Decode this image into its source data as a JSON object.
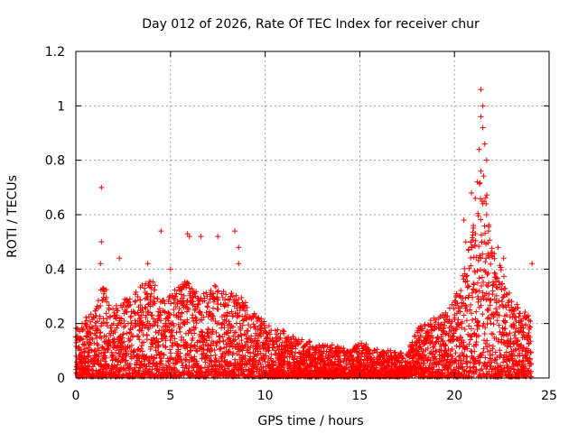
{
  "chart_data": {
    "type": "scatter",
    "title": "Day 012 of 2026, Rate Of TEC Index for receiver chur",
    "xlabel": "GPS time / hours",
    "ylabel": "ROTI / TECUs",
    "xlim": [
      0,
      25
    ],
    "ylim": [
      0,
      1.2
    ],
    "xticks": [
      0,
      5,
      10,
      15,
      20,
      25
    ],
    "xtick_labels": [
      "0",
      "5",
      "10",
      "15",
      "20",
      "25"
    ],
    "yticks": [
      0,
      0.2,
      0.4,
      0.6,
      0.8,
      1.0,
      1.2
    ],
    "ytick_labels": [
      "0",
      "0.2",
      "0.4",
      "0.6",
      "0.8",
      "1",
      "1.2"
    ],
    "grid": true,
    "marker": "+",
    "color": "#ff0000",
    "series": [
      {
        "name": "ROTI",
        "envelope": {
          "x": [
            0.0,
            0.5,
            1.0,
            1.5,
            2.0,
            2.5,
            3.0,
            3.5,
            4.0,
            4.5,
            5.0,
            5.5,
            6.0,
            6.5,
            7.0,
            7.5,
            8.0,
            8.5,
            9.0,
            9.5,
            10.0,
            10.5,
            11.0,
            11.5,
            12.0,
            12.5,
            13.0,
            13.5,
            14.0,
            14.5,
            15.0,
            15.5,
            16.0,
            16.5,
            17.0,
            17.5,
            18.0,
            18.5,
            19.0,
            19.5,
            20.0,
            20.5,
            21.0,
            21.5,
            22.0,
            22.5,
            23.0,
            23.5,
            24.0
          ],
          "y_max": [
            0.18,
            0.22,
            0.25,
            0.36,
            0.25,
            0.3,
            0.3,
            0.34,
            0.38,
            0.28,
            0.3,
            0.34,
            0.36,
            0.3,
            0.33,
            0.34,
            0.3,
            0.32,
            0.28,
            0.24,
            0.2,
            0.18,
            0.17,
            0.15,
            0.14,
            0.13,
            0.12,
            0.12,
            0.11,
            0.1,
            0.13,
            0.12,
            0.1,
            0.1,
            0.09,
            0.09,
            0.18,
            0.2,
            0.22,
            0.24,
            0.28,
            0.4,
            0.55,
            0.8,
            0.5,
            0.4,
            0.3,
            0.26,
            0.22
          ]
        },
        "outliers": [
          {
            "x": 1.35,
            "y": 0.7
          },
          {
            "x": 1.35,
            "y": 0.5
          },
          {
            "x": 4.5,
            "y": 0.54
          },
          {
            "x": 5.9,
            "y": 0.53
          },
          {
            "x": 6.0,
            "y": 0.52
          },
          {
            "x": 6.6,
            "y": 0.52
          },
          {
            "x": 7.5,
            "y": 0.52
          },
          {
            "x": 8.4,
            "y": 0.54
          },
          {
            "x": 8.6,
            "y": 0.48
          },
          {
            "x": 1.3,
            "y": 0.42
          },
          {
            "x": 2.3,
            "y": 0.44
          },
          {
            "x": 3.8,
            "y": 0.42
          },
          {
            "x": 5.0,
            "y": 0.4
          },
          {
            "x": 8.6,
            "y": 0.42
          },
          {
            "x": 24.1,
            "y": 0.42
          },
          {
            "x": 21.4,
            "y": 1.06
          },
          {
            "x": 21.5,
            "y": 1.0
          },
          {
            "x": 21.4,
            "y": 0.96
          },
          {
            "x": 21.5,
            "y": 0.92
          },
          {
            "x": 21.6,
            "y": 0.86
          },
          {
            "x": 21.3,
            "y": 0.84
          },
          {
            "x": 21.7,
            "y": 0.8
          },
          {
            "x": 21.4,
            "y": 0.76
          },
          {
            "x": 21.2,
            "y": 0.72
          },
          {
            "x": 20.9,
            "y": 0.68
          },
          {
            "x": 21.1,
            "y": 0.66
          },
          {
            "x": 21.5,
            "y": 0.64
          },
          {
            "x": 21.7,
            "y": 0.6
          },
          {
            "x": 20.5,
            "y": 0.58
          },
          {
            "x": 21.0,
            "y": 0.56
          },
          {
            "x": 21.8,
            "y": 0.54
          },
          {
            "x": 20.6,
            "y": 0.5
          },
          {
            "x": 22.3,
            "y": 0.48
          },
          {
            "x": 22.6,
            "y": 0.44
          },
          {
            "x": 22.0,
            "y": 0.46
          }
        ]
      }
    ]
  }
}
